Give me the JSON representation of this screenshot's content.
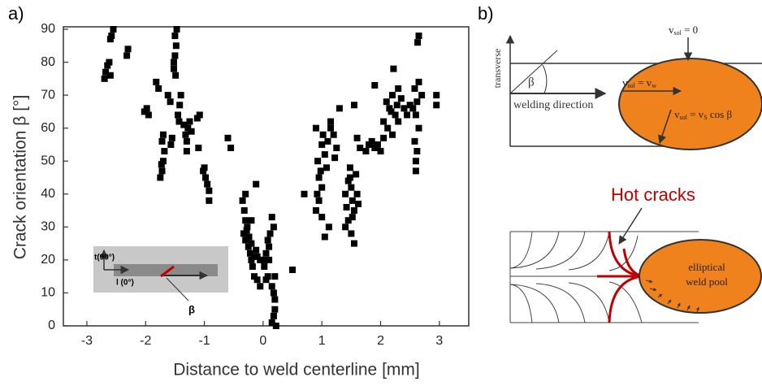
{
  "chart_data": {
    "type": "scatter",
    "panel_label": "a)",
    "xlabel": "Distance to weld centerline [mm]",
    "ylabel": "Crack orientation β [°]",
    "xlim": [
      -3.4,
      3.5
    ],
    "ylim": [
      0,
      90
    ],
    "xticks": [
      -3,
      -2,
      -1,
      0,
      1,
      2,
      3
    ],
    "yticks": [
      0,
      10,
      20,
      30,
      40,
      50,
      60,
      70,
      80,
      90
    ],
    "color": "#000000",
    "x": [
      -2.7,
      -2.68,
      -2.65,
      -2.62,
      -2.6,
      -2.58,
      -2.55,
      -2.6,
      -2.32,
      -2.3,
      -2.02,
      -1.98,
      -1.95,
      -1.82,
      -1.78,
      -1.72,
      -1.7,
      -1.68,
      -1.72,
      -1.7,
      -1.75,
      -1.73,
      -1.62,
      -1.58,
      -1.52,
      -1.5,
      -1.48,
      -1.5,
      -1.47,
      -1.52,
      -1.49,
      -1.45,
      -1.42,
      -1.4,
      -1.43,
      -1.55,
      -1.57,
      -1.32,
      -1.28,
      -1.25,
      -1.3,
      -1.22,
      -1.35,
      -1.3,
      -1.12,
      -1.08,
      -1.02,
      -0.98,
      -0.95,
      -0.92,
      -1.0,
      -0.92,
      -1.1,
      -0.6,
      -0.55,
      -0.35,
      -0.32,
      -0.3,
      -0.28,
      -0.3,
      -0.25,
      -0.22,
      -0.2,
      -0.18,
      -0.15,
      -0.3,
      -0.27,
      -0.33,
      -0.24,
      -0.2,
      -0.1,
      -0.12,
      -0.05,
      -0.15,
      -0.1,
      -0.2,
      -0.12,
      0,
      0.02,
      0.05,
      0.08,
      0.1,
      0.12,
      0.15,
      0.18,
      0.1,
      0.15,
      0.18,
      0.2,
      0.2,
      0.18,
      0.15,
      0.22,
      0.05,
      0.08,
      0.2,
      -0.05,
      0.5,
      0.7,
      0.9,
      0.92,
      0.95,
      0.93,
      0.9,
      1.0,
      1.02,
      1.05,
      1.08,
      1.0,
      1.1,
      1.15,
      1.2,
      1.22,
      1.25,
      0.95,
      1.0,
      1.05,
      1.12,
      0.98,
      1.15,
      1.3,
      1.4,
      1.42,
      1.45,
      1.48,
      1.5,
      1.52,
      1.55,
      1.45,
      1.5,
      1.55,
      1.58,
      1.6,
      1.62,
      1.4,
      1.48,
      1.52,
      1.55,
      1.65,
      1.6,
      1.75,
      1.8,
      1.85,
      1.9,
      1.95,
      2.0,
      2.05,
      1.9,
      2.22,
      2.05,
      2.1,
      2.15,
      2.2,
      2.25,
      2.3,
      2.12,
      2.18,
      2.28,
      2.35,
      2.4,
      2.2,
      2.3,
      2.45,
      2.5,
      2.6,
      2.62,
      2.58,
      2.65,
      2.6,
      2.62,
      2.58,
      2.65,
      2.7,
      2.55,
      2.6,
      2.65,
      2.63,
      2.95,
      2.95
    ],
    "values": [
      75,
      77,
      79,
      80,
      76,
      88,
      90,
      87,
      82,
      84,
      65,
      66,
      64,
      74,
      72,
      47,
      50,
      53,
      56,
      58,
      45,
      49,
      70,
      68,
      78,
      82,
      85,
      88,
      90,
      80,
      76,
      64,
      67,
      70,
      62,
      57,
      55,
      58,
      60,
      62,
      56,
      59,
      61,
      53,
      63,
      64,
      47,
      45,
      43,
      41,
      48,
      38,
      54,
      57,
      54,
      38,
      35,
      32,
      29,
      26,
      24,
      22,
      20,
      18,
      21,
      40,
      30,
      28,
      27,
      25,
      21,
      23,
      20,
      15,
      14,
      32,
      43,
      20,
      18,
      22,
      15,
      24,
      28,
      33,
      30,
      20,
      12,
      10,
      8,
      5,
      3,
      1,
      0,
      14,
      26,
      15,
      12,
      17,
      40,
      35,
      40,
      45,
      50,
      60,
      55,
      58,
      52,
      48,
      42,
      56,
      60,
      58,
      51,
      54,
      38,
      33,
      27,
      30,
      47,
      62,
      66,
      40,
      36,
      44,
      48,
      42,
      38,
      35,
      32,
      28,
      25,
      46,
      40,
      37,
      30,
      45,
      33,
      67,
      54,
      57,
      53,
      55,
      56,
      54,
      55,
      53,
      57,
      73,
      78,
      62,
      68,
      66,
      70,
      64,
      72,
      60,
      65,
      67,
      69,
      66,
      58,
      62,
      64,
      67,
      50,
      53,
      56,
      60,
      64,
      68,
      72,
      74,
      70,
      66,
      47,
      88,
      86,
      67,
      70
    ],
    "inset_labels": [
      "t(90°)",
      "l (0°)",
      "β"
    ]
  },
  "diagram": {
    "panel_label": "b)",
    "axis_label": "transverse",
    "angle": "β",
    "direction": "welding direction",
    "velocities": [
      [
        "v",
        "sol",
        " = 0"
      ],
      [
        "v",
        "sol",
        " = v",
        "w"
      ],
      [
        "v",
        "sol",
        " = v",
        "S",
        " cos β"
      ]
    ],
    "cracks": "Hot cracks",
    "pool": [
      "elliptical",
      "weld pool"
    ]
  }
}
